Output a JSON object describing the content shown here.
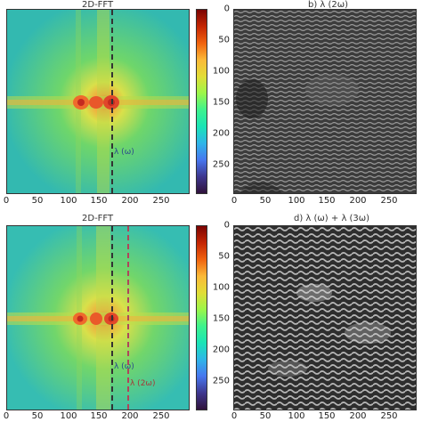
{
  "panels": {
    "top_left": {
      "title": "2D-FFT",
      "annotation_1": "λ (ω)"
    },
    "top_right": {
      "title": "b) λ (2ω)"
    },
    "bottom_left": {
      "title": "2D-FFT",
      "annotation_1": "λ (ω)",
      "annotation_2": "λ (2ω)"
    },
    "bottom_right": {
      "title": "d) λ (ω) + λ (3ω)"
    }
  },
  "x_ticks": [
    "0",
    "50",
    "100",
    "150",
    "200",
    "250"
  ],
  "y_ticks": [
    "0",
    "50",
    "100",
    "150",
    "200",
    "250"
  ],
  "colors": {
    "fft_background": "#3fbfb0",
    "fft_center": "#e0452a",
    "dashed_dark": "#333333",
    "dashed_red": "#b0455a"
  }
}
